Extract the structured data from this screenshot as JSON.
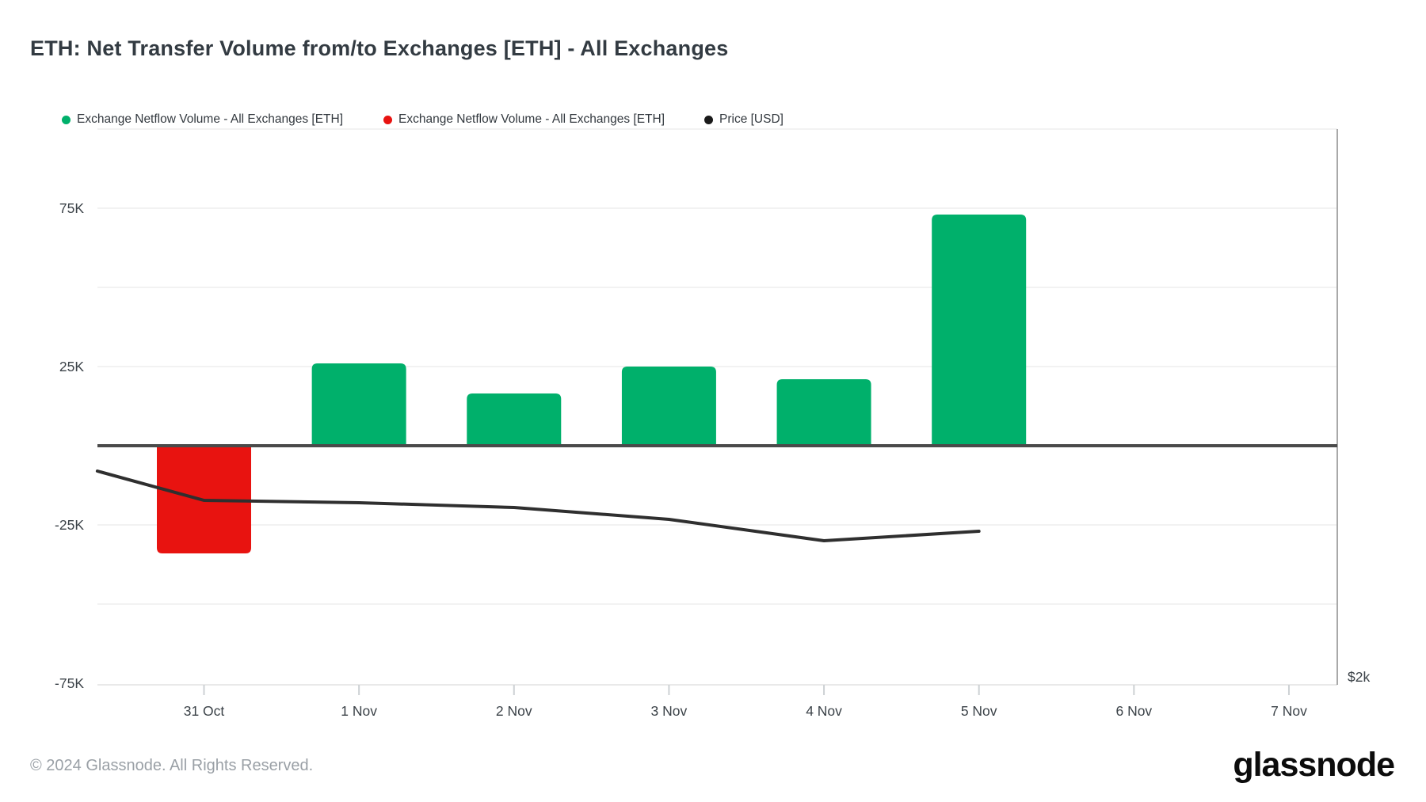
{
  "title": "ETH: Net Transfer Volume from/to Exchanges [ETH] - All Exchanges",
  "legend": [
    {
      "label": "Exchange Netflow Volume - All Exchanges [ETH]",
      "color": "#00b06b",
      "x": 78
    },
    {
      "label": "Exchange Netflow Volume - All Exchanges [ETH]",
      "color": "#e81310",
      "x": 484
    },
    {
      "label": "Price [USD]",
      "color": "#1a1a1a",
      "x": 889
    }
  ],
  "footer": {
    "copyright": "© 2024 Glassnode. All Rights Reserved.",
    "brand": "glassnode"
  },
  "chart_data": {
    "type": "bar+line",
    "title": "ETH: Net Transfer Volume from/to Exchanges [ETH] - All Exchanges",
    "categories": [
      "31 Oct",
      "1 Nov",
      "2 Nov",
      "3 Nov",
      "4 Nov",
      "5 Nov",
      "6 Nov",
      "7 Nov"
    ],
    "series": [
      {
        "name": "Exchange Netflow Volume - All Exchanges [ETH]",
        "type": "bar",
        "values": [
          -34000,
          26000,
          16500,
          25000,
          21000,
          73000,
          null,
          null
        ],
        "positive_color": "#00b06b",
        "negative_color": "#e81310"
      },
      {
        "name": "Price [USD]",
        "type": "line",
        "color": "#2f2f2f",
        "points_day_value": [
          [
            -0.688,
            -8000
          ],
          [
            0,
            -17250
          ],
          [
            1,
            -18000
          ],
          [
            2,
            -19500
          ],
          [
            3,
            -23250
          ],
          [
            4,
            -30000
          ],
          [
            5,
            -27000
          ]
        ]
      }
    ],
    "ylabel": "",
    "xlabel": "",
    "ytick_labels": [
      "75K",
      "25K",
      "-25K",
      "-75K"
    ],
    "ytick_values": [
      75000,
      25000,
      -25000,
      -75000
    ],
    "ylim": [
      -75500,
      100000
    ],
    "right_axis_label": "$2k",
    "grid": true,
    "legend_position": "top",
    "colors": {
      "grid": "#f2f2f2",
      "zero_line": "#4a4a4a",
      "axis_text": "#3b4248",
      "right_border": "#a9a9a9",
      "bottom_border": "#e9e9e9",
      "tick": "#cdd1d4"
    }
  }
}
